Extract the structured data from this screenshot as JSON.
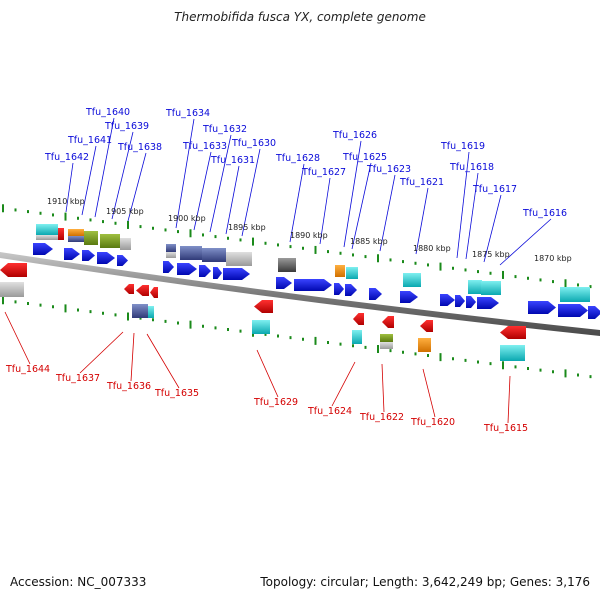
{
  "title": "Thermobifida fusca YX, complete genome",
  "accession": "Accession: NC_007333",
  "genome_info": "Topology: circular; Length: 3,642,249 bp; Genes: 3,176",
  "kbp_labels": [
    "1910 kbp",
    "1905 kbp",
    "1900 kbp",
    "1895 kbp",
    "1890 kbp",
    "1885 kbp",
    "1880 kbp",
    "1875 kbp",
    "1870 kbp"
  ],
  "top_genes": [
    "Tfu_1642",
    "Tfu_1641",
    "Tfu_1640",
    "Tfu_1639",
    "Tfu_1638",
    "Tfu_1634",
    "Tfu_1633",
    "Tfu_1632",
    "Tfu_1631",
    "Tfu_1630",
    "Tfu_1628",
    "Tfu_1627",
    "Tfu_1626",
    "Tfu_1625",
    "Tfu_1623",
    "Tfu_1621",
    "Tfu_1619",
    "Tfu_1618",
    "Tfu_1617",
    "Tfu_1616"
  ],
  "bottom_genes": [
    "Tfu_1644",
    "Tfu_1637",
    "Tfu_1636",
    "Tfu_1635",
    "Tfu_1629",
    "Tfu_1624",
    "Tfu_1622",
    "Tfu_1620",
    "Tfu_1615"
  ],
  "colors": {
    "forward_gene": "#0a12e6",
    "reverse_gene": "#e60a0a",
    "label_top": "#0b0bd9",
    "label_bottom": "#d40000",
    "backbone": "#8a8a8a",
    "tick": "#1a8a1a",
    "cyan": "#18c6cc",
    "orange": "#f08c00",
    "olive": "#7a9a1a",
    "slate": "#5a6aa0",
    "gray": "#b8b8b8"
  }
}
